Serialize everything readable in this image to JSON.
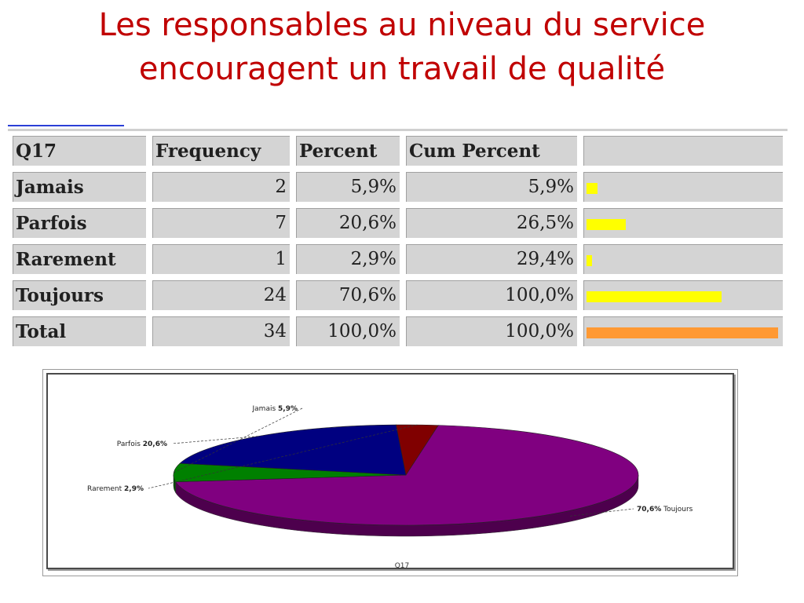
{
  "title_line1": "Les responsables au niveau du service",
  "title_line2": "encouragent un travail de qualité",
  "table": {
    "headers": [
      "Q17",
      "Frequency",
      "Percent",
      "Cum Percent",
      ""
    ],
    "rows": [
      {
        "label": "Jamais",
        "frequency": "2",
        "percent": "5,9%",
        "cum": "5,9%",
        "bar_fraction": 0.059,
        "bar_color": "#ffff00"
      },
      {
        "label": "Parfois",
        "frequency": "7",
        "percent": "20,6%",
        "cum": "26,5%",
        "bar_fraction": 0.206,
        "bar_color": "#ffff00"
      },
      {
        "label": "Rarement",
        "frequency": "1",
        "percent": "2,9%",
        "cum": "29,4%",
        "bar_fraction": 0.029,
        "bar_color": "#ffff00"
      },
      {
        "label": "Toujours",
        "frequency": "24",
        "percent": "70,6%",
        "cum": "100,0%",
        "bar_fraction": 0.706,
        "bar_color": "#ffff00"
      },
      {
        "label": "Total",
        "frequency": "34",
        "percent": "100,0%",
        "cum": "100,0%",
        "bar_fraction": 1.0,
        "bar_color": "#ff9933"
      }
    ]
  },
  "chart_data": {
    "type": "pie",
    "title": "Q17",
    "slices": [
      {
        "name": "Toujours",
        "value": 70.6,
        "label": "70,6%",
        "color": "#800080"
      },
      {
        "name": "Jamais",
        "value": 5.9,
        "label": "5,9%",
        "color": "#008000"
      },
      {
        "name": "Parfois",
        "value": 20.6,
        "label": "20,6%",
        "color": "#000080"
      },
      {
        "name": "Rarement",
        "value": 2.9,
        "label": "2,9%",
        "color": "#800000"
      }
    ]
  }
}
